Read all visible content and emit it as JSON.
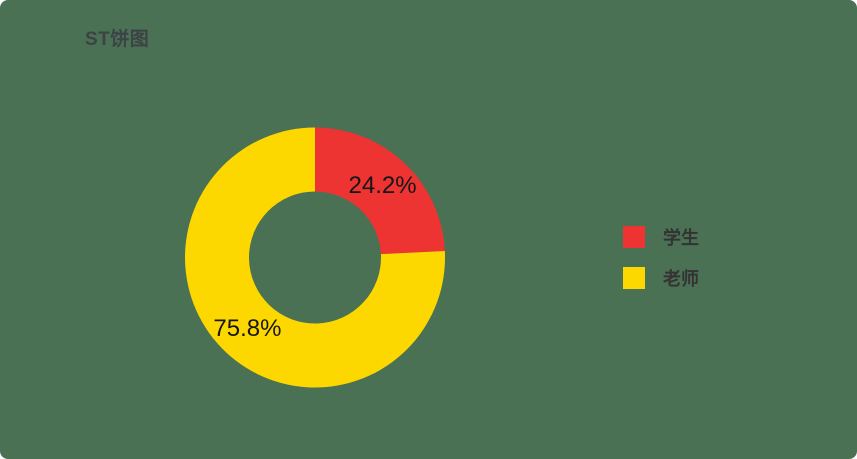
{
  "card": {
    "background": "#4a7153"
  },
  "chart_data": {
    "type": "pie",
    "title": "ST饼图",
    "donut": true,
    "start_angle": "top",
    "direction": "clockwise",
    "legend_position": "right",
    "series": [
      {
        "name": "学生",
        "value": 24.2,
        "label": "24.2%",
        "color": "#ee3333"
      },
      {
        "name": "老师",
        "value": 75.8,
        "label": "75.8%",
        "color": "#fdd700"
      }
    ]
  },
  "legend": {
    "items": [
      {
        "label": "学生",
        "color": "#ee3333"
      },
      {
        "label": "老师",
        "color": "#fdd700"
      }
    ]
  }
}
